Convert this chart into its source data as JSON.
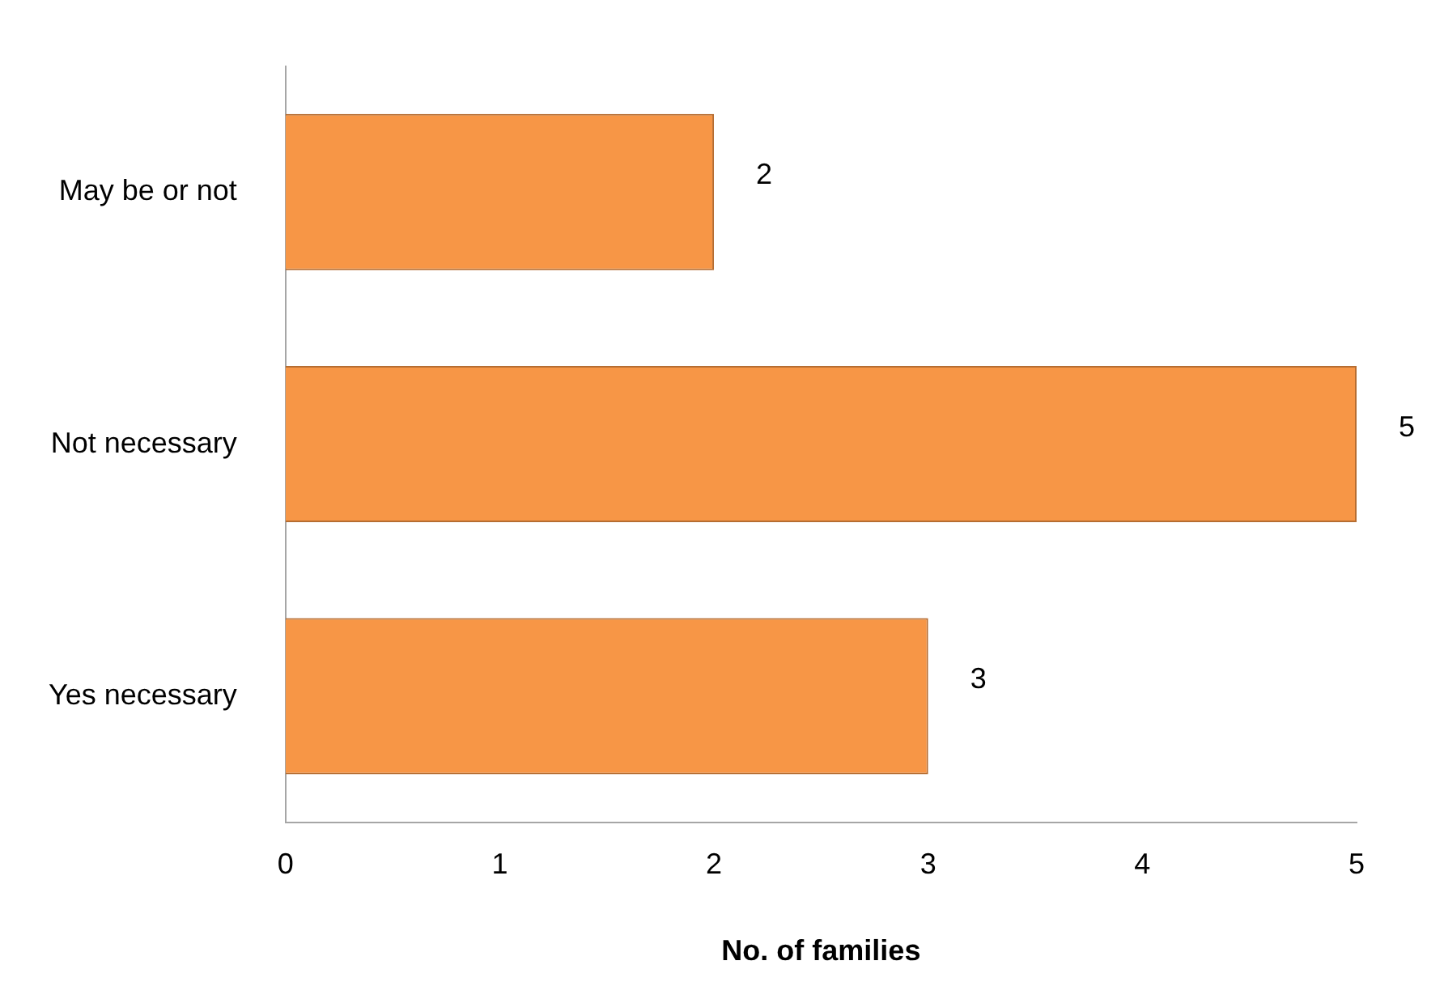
{
  "chart_data": {
    "type": "bar",
    "orientation": "horizontal",
    "xlabel": "No. of families",
    "categories": [
      "May be or not",
      "Not necessary",
      "Yes necessary"
    ],
    "values": [
      2,
      5,
      3
    ],
    "color": "#f79646",
    "xlim": [
      0,
      5
    ],
    "xticks": [
      0,
      1,
      2,
      3,
      4,
      5
    ],
    "grid": false,
    "legend": false,
    "data_labels": true
  }
}
